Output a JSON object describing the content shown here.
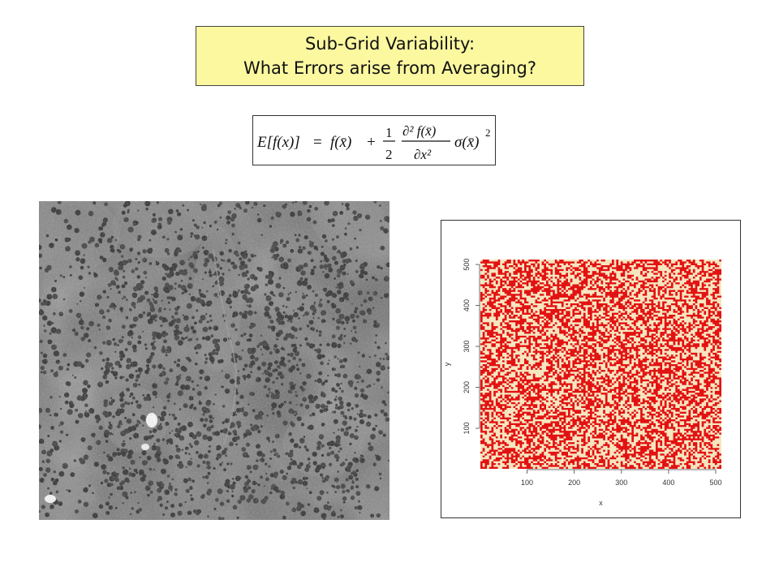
{
  "title": {
    "line1": "Sub-Grid Variability:",
    "line2": "What Errors arise from Averaging?"
  },
  "formula": {
    "lhs": "E[f(x)]",
    "eq": "=",
    "term1": "f(x̄)",
    "plus": "+",
    "half_num": "1",
    "half_den": "2",
    "deriv_num": "∂² f(x̄)",
    "deriv_den": "∂x²",
    "variance": "σ(x̄)",
    "exp": "2"
  },
  "aerial_photo": {
    "icon": "aerial-forest-photo",
    "tone": "grayscale"
  },
  "chart_data": {
    "type": "heatmap",
    "title": "",
    "xlabel": "x",
    "ylabel": "y",
    "x_ticks": [
      "100",
      "200",
      "300",
      "400",
      "500"
    ],
    "y_ticks": [
      "100",
      "200",
      "300",
      "400",
      "500"
    ],
    "xlim": [
      1,
      512
    ],
    "ylim": [
      1,
      512
    ],
    "colors": {
      "high": "#e31212",
      "low": "#f5e6c0"
    },
    "fill": "random binary field"
  }
}
